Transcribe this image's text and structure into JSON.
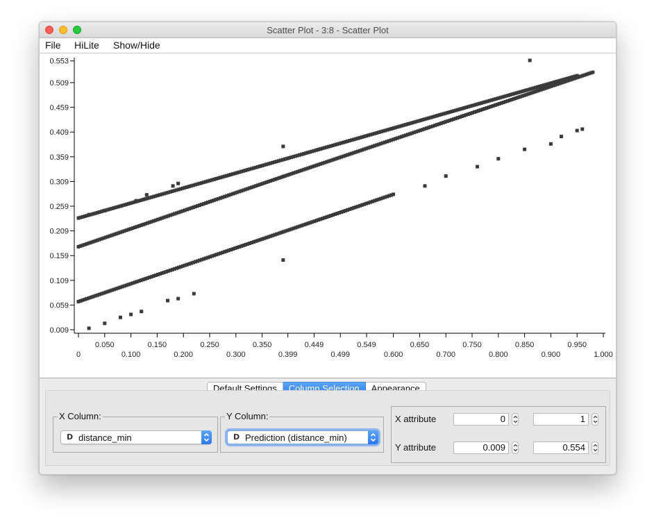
{
  "window": {
    "title": "Scatter Plot - 3:8 - Scatter Plot"
  },
  "menu": [
    "File",
    "HiLite",
    "Show/Hide"
  ],
  "chart_data": {
    "type": "scatter",
    "xlabel": "",
    "ylabel": "",
    "xlim": [
      0,
      1.0
    ],
    "ylim": [
      0.009,
      0.554
    ],
    "x_ticks": [
      "0",
      "0.050",
      "0.100",
      "0.150",
      "0.200",
      "0.250",
      "0.300",
      "0.350",
      "0.399",
      "0.449",
      "0.499",
      "0.549",
      "0.600",
      "0.650",
      "0.700",
      "0.750",
      "0.800",
      "0.850",
      "0.900",
      "0.950",
      "1.000"
    ],
    "y_ticks": [
      "0.009",
      "0.059",
      "0.109",
      "0.159",
      "0.209",
      "0.259",
      "0.309",
      "0.359",
      "0.409",
      "0.459",
      "0.509",
      "0.553"
    ],
    "series": [
      {
        "line": [
          [
            0,
            0.235
          ],
          [
            0.95,
            0.523
          ]
        ]
      },
      {
        "line": [
          [
            0,
            0.177
          ],
          [
            0.39,
            0.319
          ]
        ]
      },
      {
        "line": [
          [
            0,
            0.066
          ],
          [
            0.39,
            0.207
          ]
        ]
      },
      {
        "line": [
          [
            0.39,
            0.319
          ],
          [
            0.98,
            0.53
          ]
        ]
      },
      {
        "line": [
          [
            0.39,
            0.207
          ],
          [
            0.6,
            0.283
          ]
        ]
      }
    ],
    "points": [
      [
        0.02,
        0.242
      ],
      [
        0.05,
        0.25
      ],
      [
        0.08,
        0.259
      ],
      [
        0.11,
        0.27
      ],
      [
        0.13,
        0.282
      ],
      [
        0.18,
        0.3
      ],
      [
        0.19,
        0.305
      ],
      [
        0.39,
        0.38
      ],
      [
        0.86,
        0.554
      ],
      [
        0.02,
        0.012
      ],
      [
        0.05,
        0.022
      ],
      [
        0.08,
        0.034
      ],
      [
        0.1,
        0.04
      ],
      [
        0.12,
        0.046
      ],
      [
        0.17,
        0.068
      ],
      [
        0.19,
        0.072
      ],
      [
        0.22,
        0.082
      ],
      [
        0.39,
        0.15
      ],
      [
        0.7,
        0.32
      ],
      [
        0.76,
        0.339
      ],
      [
        0.8,
        0.355
      ],
      [
        0.85,
        0.374
      ],
      [
        0.9,
        0.385
      ],
      [
        0.95,
        0.412
      ],
      [
        0.96,
        0.415
      ],
      [
        0.92,
        0.4
      ],
      [
        0.66,
        0.3
      ]
    ],
    "grid": false
  },
  "tabs": [
    {
      "label": "Default Settings",
      "active": false
    },
    {
      "label": "Column Selection",
      "active": true
    },
    {
      "label": "Appearance",
      "active": false
    }
  ],
  "x_column": {
    "label": "X Column:",
    "value": "distance_min",
    "type_icon": "D"
  },
  "y_column": {
    "label": "Y Column:",
    "value": "Prediction (distance_min)",
    "type_icon": "D"
  },
  "x_attribute": {
    "label": "X attribute",
    "min": "0",
    "max": "1"
  },
  "y_attribute": {
    "label": "Y attribute",
    "min": "0.009",
    "max": "0.554"
  }
}
